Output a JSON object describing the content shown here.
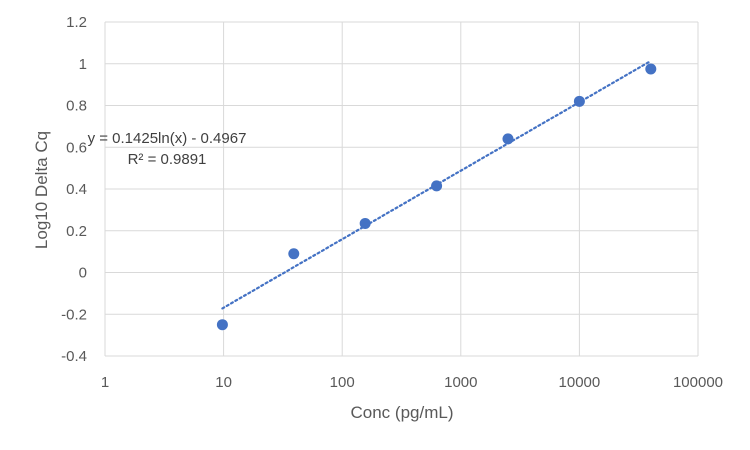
{
  "chart_data": {
    "type": "scatter",
    "title": "",
    "xlabel": "Conc (pg/mL)",
    "ylabel": "Log10 Delta Cq",
    "x_scale": "log",
    "xlim": [
      1,
      100000
    ],
    "ylim": [
      -0.4,
      1.2
    ],
    "x_ticks": [
      1,
      10,
      100,
      1000,
      10000,
      100000
    ],
    "x_tick_labels": [
      "1",
      "10",
      "100",
      "1000",
      "10000",
      "100000"
    ],
    "y_ticks": [
      -0.4,
      -0.2,
      0,
      0.2,
      0.4,
      0.6,
      0.8,
      1,
      1.2
    ],
    "y_tick_labels": [
      "-0.4",
      "-0.2",
      "0",
      "0.2",
      "0.4",
      "0.6",
      "0.8",
      "1",
      "1.2"
    ],
    "grid": true,
    "legend": "none",
    "series": [
      {
        "x": [
          9.77,
          39.06,
          156.25,
          625,
          2500,
          10000,
          40000
        ],
        "y": [
          -0.25,
          0.09,
          0.235,
          0.415,
          0.64,
          0.82,
          0.975
        ]
      }
    ],
    "trendline": {
      "type": "logarithmic",
      "a": 0.1425,
      "b": -0.4967,
      "x_range": [
        9.77,
        40000
      ],
      "equation": "y = 0.1425ln(x) - 0.4967",
      "r2": "R² = 0.9891"
    },
    "colors": {
      "marker": "#4472C4",
      "trendline": "#4472C4",
      "grid": "#D9D9D9",
      "text": "#595959"
    }
  }
}
